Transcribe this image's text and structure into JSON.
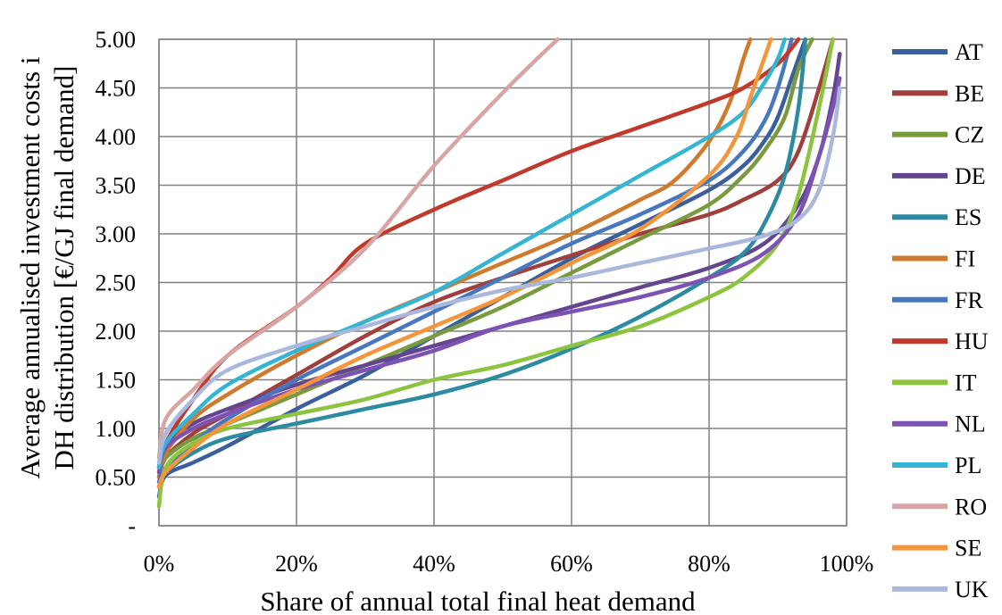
{
  "chart_data": {
    "type": "line",
    "title": "",
    "xlabel": "Share of annual total final heat demand",
    "ylabel_lines": [
      "Average annualised investment costs i",
      "DH  distribution [€/GJ final demand]"
    ],
    "xlim": [
      0,
      100
    ],
    "ylim": [
      0,
      5
    ],
    "grid": true,
    "legend_position": "right",
    "x_ticks": [
      {
        "value": 0,
        "label": "0%"
      },
      {
        "value": 20,
        "label": "20%"
      },
      {
        "value": 40,
        "label": "40%"
      },
      {
        "value": 60,
        "label": "60%"
      },
      {
        "value": 80,
        "label": "80%"
      },
      {
        "value": 100,
        "label": "100%"
      }
    ],
    "y_ticks": [
      {
        "value": 0,
        "label": "-"
      },
      {
        "value": 0.5,
        "label": "0.50"
      },
      {
        "value": 1.0,
        "label": "1.00"
      },
      {
        "value": 1.5,
        "label": "1.50"
      },
      {
        "value": 2.0,
        "label": "2.00"
      },
      {
        "value": 2.5,
        "label": "2.50"
      },
      {
        "value": 3.0,
        "label": "3.00"
      },
      {
        "value": 3.5,
        "label": "3.50"
      },
      {
        "value": 4.0,
        "label": "4.00"
      },
      {
        "value": 4.5,
        "label": "4.50"
      },
      {
        "value": 5.0,
        "label": "5.00"
      }
    ],
    "series": [
      {
        "name": "AT",
        "color": "#3b5f9a",
        "points": [
          [
            0,
            0.3
          ],
          [
            1,
            0.52
          ],
          [
            5,
            0.65
          ],
          [
            10,
            0.82
          ],
          [
            20,
            1.2
          ],
          [
            30,
            1.55
          ],
          [
            40,
            1.95
          ],
          [
            50,
            2.35
          ],
          [
            60,
            2.75
          ],
          [
            70,
            3.1
          ],
          [
            80,
            3.45
          ],
          [
            85,
            3.7
          ],
          [
            88,
            3.95
          ],
          [
            90,
            4.2
          ],
          [
            92,
            4.6
          ],
          [
            94,
            5.0
          ]
        ]
      },
      {
        "name": "BE",
        "color": "#a0403c",
        "points": [
          [
            0,
            0.5
          ],
          [
            1,
            0.7
          ],
          [
            5,
            0.95
          ],
          [
            10,
            1.15
          ],
          [
            20,
            1.55
          ],
          [
            30,
            1.95
          ],
          [
            40,
            2.3
          ],
          [
            50,
            2.55
          ],
          [
            60,
            2.78
          ],
          [
            70,
            3.0
          ],
          [
            80,
            3.2
          ],
          [
            85,
            3.35
          ],
          [
            90,
            3.55
          ],
          [
            93,
            3.85
          ],
          [
            96,
            4.5
          ],
          [
            98,
            5.0
          ]
        ]
      },
      {
        "name": "CZ",
        "color": "#7a9a3e",
        "points": [
          [
            0,
            0.55
          ],
          [
            1,
            0.7
          ],
          [
            5,
            0.9
          ],
          [
            10,
            1.05
          ],
          [
            20,
            1.35
          ],
          [
            30,
            1.65
          ],
          [
            40,
            1.95
          ],
          [
            50,
            2.25
          ],
          [
            60,
            2.6
          ],
          [
            70,
            2.95
          ],
          [
            80,
            3.3
          ],
          [
            85,
            3.6
          ],
          [
            88,
            3.85
          ],
          [
            91,
            4.2
          ],
          [
            93,
            4.7
          ],
          [
            95,
            5.0
          ]
        ]
      },
      {
        "name": "DE",
        "color": "#64458f",
        "points": [
          [
            0,
            0.6
          ],
          [
            1,
            0.85
          ],
          [
            5,
            1.05
          ],
          [
            10,
            1.2
          ],
          [
            20,
            1.45
          ],
          [
            30,
            1.65
          ],
          [
            40,
            1.85
          ],
          [
            50,
            2.05
          ],
          [
            60,
            2.25
          ],
          [
            70,
            2.45
          ],
          [
            80,
            2.65
          ],
          [
            88,
            2.9
          ],
          [
            93,
            3.3
          ],
          [
            96,
            3.8
          ],
          [
            98,
            4.4
          ],
          [
            99,
            4.85
          ]
        ]
      },
      {
        "name": "ES",
        "color": "#2c8ba0",
        "points": [
          [
            0,
            0.4
          ],
          [
            1,
            0.55
          ],
          [
            5,
            0.75
          ],
          [
            10,
            0.9
          ],
          [
            20,
            1.05
          ],
          [
            30,
            1.2
          ],
          [
            40,
            1.35
          ],
          [
            50,
            1.55
          ],
          [
            60,
            1.82
          ],
          [
            70,
            2.15
          ],
          [
            80,
            2.55
          ],
          [
            85,
            2.8
          ],
          [
            88,
            3.1
          ],
          [
            91,
            3.6
          ],
          [
            93,
            4.3
          ],
          [
            94,
            5.0
          ]
        ]
      },
      {
        "name": "FI",
        "color": "#d07a2e",
        "points": [
          [
            0,
            0.5
          ],
          [
            1,
            0.75
          ],
          [
            5,
            1.1
          ],
          [
            10,
            1.35
          ],
          [
            20,
            1.75
          ],
          [
            30,
            2.1
          ],
          [
            40,
            2.4
          ],
          [
            50,
            2.7
          ],
          [
            60,
            3.0
          ],
          [
            70,
            3.35
          ],
          [
            75,
            3.55
          ],
          [
            80,
            3.95
          ],
          [
            83,
            4.35
          ],
          [
            85,
            4.8
          ],
          [
            86,
            5.0
          ]
        ]
      },
      {
        "name": "FR",
        "color": "#4677bf",
        "points": [
          [
            0,
            0.45
          ],
          [
            1,
            0.6
          ],
          [
            5,
            0.85
          ],
          [
            10,
            1.1
          ],
          [
            20,
            1.5
          ],
          [
            30,
            1.85
          ],
          [
            40,
            2.2
          ],
          [
            50,
            2.55
          ],
          [
            60,
            2.9
          ],
          [
            70,
            3.2
          ],
          [
            80,
            3.55
          ],
          [
            85,
            3.85
          ],
          [
            88,
            4.15
          ],
          [
            90,
            4.5
          ],
          [
            92,
            5.0
          ]
        ]
      },
      {
        "name": "HU",
        "color": "#c0392b",
        "points": [
          [
            0,
            0.6
          ],
          [
            1,
            0.85
          ],
          [
            5,
            1.3
          ],
          [
            10,
            1.75
          ],
          [
            20,
            2.25
          ],
          [
            25,
            2.55
          ],
          [
            30,
            2.9
          ],
          [
            40,
            3.25
          ],
          [
            50,
            3.55
          ],
          [
            60,
            3.85
          ],
          [
            70,
            4.1
          ],
          [
            80,
            4.35
          ],
          [
            85,
            4.5
          ],
          [
            90,
            4.75
          ],
          [
            93,
            5.0
          ]
        ]
      },
      {
        "name": "IT",
        "color": "#8dc43f",
        "points": [
          [
            0,
            0.2
          ],
          [
            1,
            0.6
          ],
          [
            5,
            0.85
          ],
          [
            10,
            1.0
          ],
          [
            20,
            1.15
          ],
          [
            30,
            1.3
          ],
          [
            40,
            1.5
          ],
          [
            50,
            1.65
          ],
          [
            60,
            1.85
          ],
          [
            70,
            2.05
          ],
          [
            80,
            2.35
          ],
          [
            85,
            2.55
          ],
          [
            90,
            2.9
          ],
          [
            93,
            3.4
          ],
          [
            96,
            4.3
          ],
          [
            98,
            5.0
          ]
        ]
      },
      {
        "name": "NL",
        "color": "#7d52b5",
        "points": [
          [
            0,
            0.55
          ],
          [
            1,
            0.8
          ],
          [
            5,
            1.0
          ],
          [
            10,
            1.15
          ],
          [
            20,
            1.4
          ],
          [
            30,
            1.6
          ],
          [
            40,
            1.8
          ],
          [
            50,
            2.05
          ],
          [
            60,
            2.2
          ],
          [
            70,
            2.35
          ],
          [
            80,
            2.55
          ],
          [
            88,
            2.8
          ],
          [
            93,
            3.2
          ],
          [
            96,
            3.8
          ],
          [
            98,
            4.3
          ],
          [
            99,
            4.6
          ]
        ]
      },
      {
        "name": "PL",
        "color": "#33b5d3",
        "points": [
          [
            0,
            0.6
          ],
          [
            1,
            0.85
          ],
          [
            5,
            1.15
          ],
          [
            10,
            1.45
          ],
          [
            20,
            1.8
          ],
          [
            30,
            2.1
          ],
          [
            40,
            2.4
          ],
          [
            50,
            2.8
          ],
          [
            60,
            3.2
          ],
          [
            70,
            3.6
          ],
          [
            80,
            4.0
          ],
          [
            85,
            4.25
          ],
          [
            88,
            4.55
          ],
          [
            90,
            4.8
          ],
          [
            91,
            5.0
          ]
        ]
      },
      {
        "name": "RO",
        "color": "#d8a5a5",
        "points": [
          [
            0,
            0.7
          ],
          [
            1,
            1.1
          ],
          [
            5,
            1.4
          ],
          [
            10,
            1.75
          ],
          [
            20,
            2.25
          ],
          [
            30,
            2.85
          ],
          [
            40,
            3.7
          ],
          [
            50,
            4.45
          ],
          [
            55,
            4.8
          ],
          [
            58,
            5.0
          ]
        ]
      },
      {
        "name": "SE",
        "color": "#f5953a",
        "points": [
          [
            0,
            0.4
          ],
          [
            1,
            0.55
          ],
          [
            5,
            0.8
          ],
          [
            10,
            1.05
          ],
          [
            20,
            1.4
          ],
          [
            30,
            1.75
          ],
          [
            40,
            2.05
          ],
          [
            50,
            2.35
          ],
          [
            60,
            2.7
          ],
          [
            70,
            3.05
          ],
          [
            80,
            3.6
          ],
          [
            84,
            4.0
          ],
          [
            86,
            4.4
          ],
          [
            88,
            4.8
          ],
          [
            89,
            5.0
          ]
        ]
      },
      {
        "name": "UK",
        "color": "#a9b8dc",
        "points": [
          [
            0,
            0.65
          ],
          [
            1,
            0.95
          ],
          [
            5,
            1.3
          ],
          [
            10,
            1.6
          ],
          [
            20,
            1.85
          ],
          [
            30,
            2.05
          ],
          [
            40,
            2.25
          ],
          [
            50,
            2.42
          ],
          [
            60,
            2.55
          ],
          [
            70,
            2.7
          ],
          [
            80,
            2.85
          ],
          [
            88,
            2.98
          ],
          [
            93,
            3.15
          ],
          [
            96,
            3.45
          ],
          [
            98,
            4.0
          ],
          [
            99,
            4.5
          ]
        ]
      }
    ]
  }
}
